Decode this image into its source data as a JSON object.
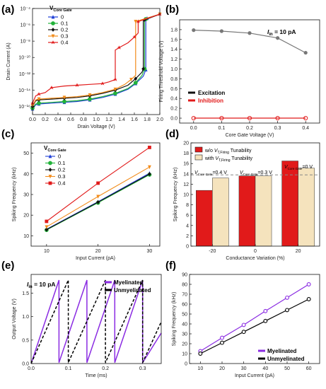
{
  "chart_data": [
    {
      "panel": "(a)",
      "type": "line",
      "xlabel": "Drain Voltage (V)",
      "ylabel": "Drain Current (A)",
      "xlim": [
        0.0,
        2.0
      ],
      "ylim_log10": [
        -17,
        -4
      ],
      "y_scale": "log",
      "x_ticks": [
        "0.0",
        "0.2",
        "0.4",
        "0.6",
        "0.8",
        "1.0",
        "1.2",
        "1.4",
        "1.6",
        "1.8",
        "2.0"
      ],
      "y_ticks": [
        "10⁻¹⁶",
        "10⁻¹⁴",
        "10⁻¹²",
        "10⁻¹⁰",
        "10⁻⁸",
        "10⁻⁶",
        "10⁻⁴"
      ],
      "legend_title": "V_Core Gate",
      "legend_position": "top-left",
      "series": [
        {
          "name": "0",
          "color": "#1f3fd6",
          "marker": "triangle",
          "points": [
            [
              0.0,
              -16.3
            ],
            [
              0.05,
              -15.8
            ],
            [
              0.1,
              -15.7
            ],
            [
              0.3,
              -15.6
            ],
            [
              0.5,
              -15.5
            ],
            [
              0.7,
              -15.4
            ],
            [
              0.9,
              -15.2
            ],
            [
              1.1,
              -14.9
            ],
            [
              1.3,
              -14.5
            ],
            [
              1.5,
              -13.9
            ],
            [
              1.62,
              -13.2
            ],
            [
              1.74,
              -12.3
            ],
            [
              1.78,
              -11.5
            ],
            [
              1.78,
              -5.3
            ],
            [
              1.8,
              -5.2
            ],
            [
              2.0,
              -4.7
            ]
          ]
        },
        {
          "name": "0.1",
          "color": "#22b33a",
          "marker": "circle",
          "points": [
            [
              0.0,
              -16.2
            ],
            [
              0.05,
              -15.7
            ],
            [
              0.1,
              -15.6
            ],
            [
              0.3,
              -15.5
            ],
            [
              0.5,
              -15.4
            ],
            [
              0.7,
              -15.3
            ],
            [
              0.9,
              -15.1
            ],
            [
              1.1,
              -14.8
            ],
            [
              1.3,
              -14.4
            ],
            [
              1.5,
              -13.8
            ],
            [
              1.62,
              -13.1
            ],
            [
              1.72,
              -12.2
            ],
            [
              1.76,
              -11.4
            ],
            [
              1.76,
              -5.4
            ],
            [
              1.78,
              -5.3
            ],
            [
              2.0,
              -4.7
            ]
          ]
        },
        {
          "name": "0.2",
          "color": "#111111",
          "marker": "diamond",
          "points": [
            [
              0.0,
              -16.0
            ],
            [
              0.05,
              -15.3
            ],
            [
              0.1,
              -15.2
            ],
            [
              0.3,
              -15.1
            ],
            [
              0.5,
              -15.0
            ],
            [
              0.7,
              -14.9
            ],
            [
              0.9,
              -14.7
            ],
            [
              1.1,
              -14.4
            ],
            [
              1.3,
              -14.0
            ],
            [
              1.5,
              -13.4
            ],
            [
              1.62,
              -12.6
            ],
            [
              1.72,
              -11.8
            ],
            [
              1.74,
              -11.4
            ],
            [
              1.74,
              -5.5
            ],
            [
              1.76,
              -5.4
            ],
            [
              2.0,
              -4.7
            ]
          ]
        },
        {
          "name": "0.3",
          "color": "#f28c1b",
          "marker": "downtriangle",
          "points": [
            [
              0.0,
              -15.9
            ],
            [
              0.05,
              -15.2
            ],
            [
              0.1,
              -15.1
            ],
            [
              0.3,
              -15.0
            ],
            [
              0.5,
              -14.9
            ],
            [
              0.7,
              -14.8
            ],
            [
              0.9,
              -14.6
            ],
            [
              1.1,
              -14.3
            ],
            [
              1.3,
              -13.9
            ],
            [
              1.45,
              -13.3
            ],
            [
              1.55,
              -12.7
            ],
            [
              1.62,
              -12.2
            ],
            [
              1.62,
              -5.6
            ],
            [
              1.66,
              -5.5
            ],
            [
              2.0,
              -4.7
            ]
          ]
        },
        {
          "name": "0.4",
          "color": "#e11a1a",
          "marker": "star",
          "points": [
            [
              0.0,
              -15.6
            ],
            [
              0.05,
              -14.7
            ],
            [
              0.1,
              -14.5
            ],
            [
              0.2,
              -14.3
            ],
            [
              0.3,
              -13.7
            ],
            [
              0.5,
              -13.5
            ],
            [
              0.7,
              -13.4
            ],
            [
              0.9,
              -13.3
            ],
            [
              1.1,
              -13.2
            ],
            [
              1.2,
              -13.0
            ],
            [
              1.3,
              -12.7
            ],
            [
              1.3,
              -9.1
            ],
            [
              1.36,
              -8.8
            ],
            [
              1.5,
              -8.2
            ],
            [
              1.6,
              -7.5
            ],
            [
              1.66,
              -7.0
            ],
            [
              1.66,
              -5.6
            ],
            [
              1.7,
              -5.5
            ],
            [
              2.0,
              -4.7
            ]
          ]
        }
      ]
    },
    {
      "panel": "(b)",
      "type": "line",
      "xlabel": "Core Gate Voltage (V)",
      "ylabel": "Firing Threshold Voltage (V)",
      "xlim": [
        -0.05,
        0.45
      ],
      "ylim": [
        -0.1,
        2.0
      ],
      "x_ticks": [
        "0.0",
        "0.1",
        "0.2",
        "0.3",
        "0.4"
      ],
      "y_ticks": [
        "0.0",
        "0.2",
        "0.4",
        "0.6",
        "0.8",
        "1.0",
        "1.2",
        "1.4",
        "1.6",
        "1.8"
      ],
      "annotation": "I_in = 10 pA",
      "legend_position": "bottom-left",
      "categories": [
        0.0,
        0.1,
        0.2,
        0.3,
        0.4
      ],
      "series": [
        {
          "name": "Excitation",
          "color": "#777777",
          "values": [
            1.79,
            1.77,
            1.73,
            1.63,
            1.33
          ]
        },
        {
          "name": "Inhibition",
          "color": "#e11a1a",
          "values": [
            0.0,
            0.0,
            0.0,
            0.0,
            0.0
          ]
        }
      ]
    },
    {
      "panel": "(c)",
      "type": "line",
      "xlabel": "Input Current (pA)",
      "ylabel": "Spiking Frequency (kHz)",
      "xlim": [
        7,
        32
      ],
      "ylim": [
        5,
        55
      ],
      "x_ticks": [
        "10",
        "20",
        "30"
      ],
      "y_ticks": [
        "10",
        "20",
        "30",
        "40",
        "50"
      ],
      "legend_title": "V_Core Gate",
      "legend_position": "top-left",
      "x": [
        10,
        20,
        30
      ],
      "series": [
        {
          "name": "0",
          "color": "#1f3fd6",
          "marker": "triangle",
          "values": [
            13.2,
            26.5,
            40.3
          ]
        },
        {
          "name": "0.1",
          "color": "#22b33a",
          "marker": "circle",
          "values": [
            12.8,
            26.0,
            39.6
          ]
        },
        {
          "name": "0.2",
          "color": "#111111",
          "marker": "diamond",
          "values": [
            13.0,
            26.3,
            39.9
          ]
        },
        {
          "name": "0.3",
          "color": "#f28c1b",
          "marker": "downtriangle",
          "values": [
            14.3,
            29.0,
            43.3
          ]
        },
        {
          "name": "0.4",
          "color": "#e11a1a",
          "marker": "square",
          "values": [
            17.0,
            35.5,
            52.8
          ]
        }
      ]
    },
    {
      "panel": "(d)",
      "type": "bar",
      "xlabel": "Conductance Variation (%)",
      "ylabel": "Spiking Frequency (kHz)",
      "ylim": [
        0,
        20
      ],
      "y_ticks": [
        "0",
        "2",
        "4",
        "6",
        "8",
        "10",
        "12",
        "14",
        "16",
        "18",
        "20"
      ],
      "categories": [
        "-20",
        "0",
        "20"
      ],
      "legend_position": "top-left",
      "series": [
        {
          "name": "w/o V_T,Firing Tunability",
          "color": "#e11a1a",
          "values": [
            10.8,
            13.6,
            16.5
          ]
        },
        {
          "name": "with V_T,Firing Tunability",
          "color": "#f5e3bd",
          "values": [
            13.2,
            13.6,
            15.1
          ]
        }
      ],
      "reference_line": 13.8,
      "annotations": [
        "V_Core Gate=0.4 V",
        "V_Core Gate=0.3 V",
        "V_Core Gate=0 V"
      ]
    },
    {
      "panel": "(e)",
      "type": "line",
      "xlabel": "Time (ms)",
      "ylabel": "Output Voltage (V)",
      "xlim": [
        0.0,
        0.35
      ],
      "ylim": [
        0.0,
        1.9
      ],
      "x_ticks": [
        "0.0",
        "0.1",
        "0.2",
        "0.3"
      ],
      "y_ticks": [
        "0.0",
        "0.5",
        "1.0",
        "1.5"
      ],
      "annotation": "I_in = 10 pA",
      "legend_position": "top-right",
      "series": [
        {
          "name": "Myelinated",
          "color": "#8a2be2",
          "style": "solid",
          "points": [
            [
              0.0,
              0.0
            ],
            [
              0.075,
              1.78
            ],
            [
              0.075,
              0.02
            ],
            [
              0.15,
              1.78
            ],
            [
              0.15,
              0.02
            ],
            [
              0.225,
              1.78
            ],
            [
              0.225,
              0.02
            ],
            [
              0.3,
              1.78
            ],
            [
              0.3,
              0.02
            ],
            [
              0.35,
              0.65
            ]
          ]
        },
        {
          "name": "Unmyelinated",
          "color": "#000000",
          "style": "dashed",
          "points": [
            [
              0.0,
              0.0
            ],
            [
              0.1,
              1.78
            ],
            [
              0.1,
              0.02
            ],
            [
              0.2,
              1.78
            ],
            [
              0.2,
              0.02
            ],
            [
              0.3,
              1.78
            ],
            [
              0.3,
              0.02
            ],
            [
              0.35,
              0.89
            ]
          ]
        }
      ]
    },
    {
      "panel": "(f)",
      "type": "line",
      "xlabel": "Input Current (pA)",
      "ylabel": "Spiking Frequency (kHz)",
      "xlim": [
        5,
        65
      ],
      "ylim": [
        0,
        90
      ],
      "x_ticks": [
        "10",
        "20",
        "30",
        "40",
        "50",
        "60"
      ],
      "y_ticks": [
        "0",
        "10",
        "20",
        "30",
        "40",
        "50",
        "60",
        "70",
        "80",
        "90"
      ],
      "legend_position": "bottom-right",
      "x": [
        10,
        20,
        30,
        40,
        50,
        60
      ],
      "series": [
        {
          "name": "Myelinated",
          "color": "#8a2be2",
          "values": [
            12.5,
            26.0,
            39.0,
            53.0,
            66.5,
            80.0
          ]
        },
        {
          "name": "Unmyelinated",
          "color": "#000000",
          "values": [
            10.0,
            21.0,
            32.0,
            43.0,
            54.0,
            65.0
          ]
        }
      ]
    }
  ],
  "labels": {
    "vcg_legend_main": "V",
    "vcg_legend_sub": "Core Gate",
    "iin_main": "I",
    "iin_sub": "in",
    "iin_value": " = 10 pA",
    "b_leg_exc": "Excitation",
    "b_leg_inh": "Inhibition",
    "d_leg1_pre": "w/o ",
    "d_leg2_pre": "with ",
    "d_leg_v": "V",
    "d_leg_sub": "T,Firing",
    "d_leg_post": " Tunability",
    "d_ann_v": "V",
    "d_ann_sub": "Core Gate",
    "d_ann1_val": "=0.4 V",
    "d_ann2_val": "=0.3 V",
    "d_ann3_val": "=0 V",
    "ef_leg_my": "Myelinated",
    "ef_leg_un": "Unmyelinated"
  }
}
